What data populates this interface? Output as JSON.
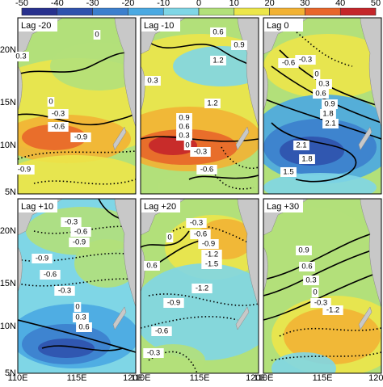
{
  "colorbar": {
    "ticks": [
      -50,
      -40,
      -30,
      -20,
      -10,
      0,
      10,
      20,
      30,
      40,
      50
    ],
    "colors": [
      "#28318e",
      "#2f52ad",
      "#3c7fcd",
      "#4aa9e2",
      "#7fd6e6",
      "#b2e07a",
      "#ece64a",
      "#f2b234",
      "#e8662a",
      "#c4252a"
    ]
  },
  "lat_labels": [
    "20N",
    "15N",
    "10N",
    "5N"
  ],
  "lon_labels": [
    "110E",
    "115E",
    "120E"
  ],
  "panels": [
    {
      "label": "Lag -20",
      "contour_labels": [
        "0",
        "0.3",
        "0",
        "-0.3",
        "-0.6",
        "-0.9",
        "-0.9"
      ]
    },
    {
      "label": "Lag -10",
      "contour_labels": [
        "0.6",
        "0.9",
        "1.2",
        "0.3",
        "1.2",
        "0.9",
        "0.6",
        "0.3",
        "0",
        "-0.3",
        "-0.6"
      ]
    },
    {
      "label": "Lag 0",
      "contour_labels": [
        "-0.6",
        "-0.3",
        "0",
        "0.3",
        "0.6",
        "0.9",
        "1.8",
        "2.1",
        "2.1",
        "1.8",
        "1.5"
      ]
    },
    {
      "label": "Lag +10",
      "contour_labels": [
        "-0.3",
        "-0.6",
        "-0.9",
        "-0.9",
        "-0.6",
        "-0.3",
        "0",
        "0.3",
        "0.6"
      ]
    },
    {
      "label": "Lag +20",
      "contour_labels": [
        "-0.3",
        "0",
        "-0.6",
        "-0.9",
        "-1.2",
        "-1.5",
        "0.6",
        "-1.2",
        "-0.9",
        "-0.6",
        "-0.3"
      ]
    },
    {
      "label": "Lag +30",
      "contour_labels": [
        "0.9",
        "0.6",
        "0.3",
        "0",
        "-0.3",
        "-1.2"
      ]
    }
  ]
}
